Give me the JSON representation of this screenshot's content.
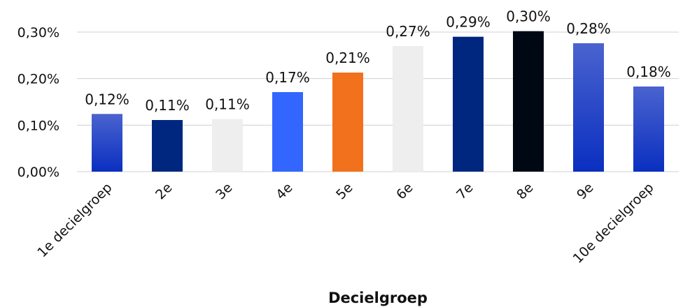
{
  "chart_data": {
    "type": "bar",
    "title": "",
    "xlabel": "Decielgroep",
    "ylabel": "",
    "ylim": [
      0,
      0.3
    ],
    "yticks": [
      0,
      0.1,
      0.2,
      0.3
    ],
    "ytick_labels": [
      "0,00%",
      "0,10%",
      "0,20%",
      "0,30%"
    ],
    "grid": true,
    "categories": [
      "1e decielgroep",
      "2e",
      "3e",
      "4e",
      "5e",
      "6e",
      "7e",
      "8e",
      "9e",
      "10e decielgroep"
    ],
    "values": [
      0.124,
      0.111,
      0.113,
      0.171,
      0.213,
      0.27,
      0.29,
      0.302,
      0.276,
      0.183
    ],
    "data_labels": [
      "0,12%",
      "0,11%",
      "0,11%",
      "0,17%",
      "0,21%",
      "0,27%",
      "0,29%",
      "0,30%",
      "0,28%",
      "0,18%"
    ],
    "colors": [
      "gradient-blue",
      "#00277f",
      "#eeeeee",
      "#3366ff",
      "#f2711c",
      "#eeeeee",
      "#00277f",
      "#000814",
      "gradient-blue",
      "gradient-blue"
    ]
  }
}
